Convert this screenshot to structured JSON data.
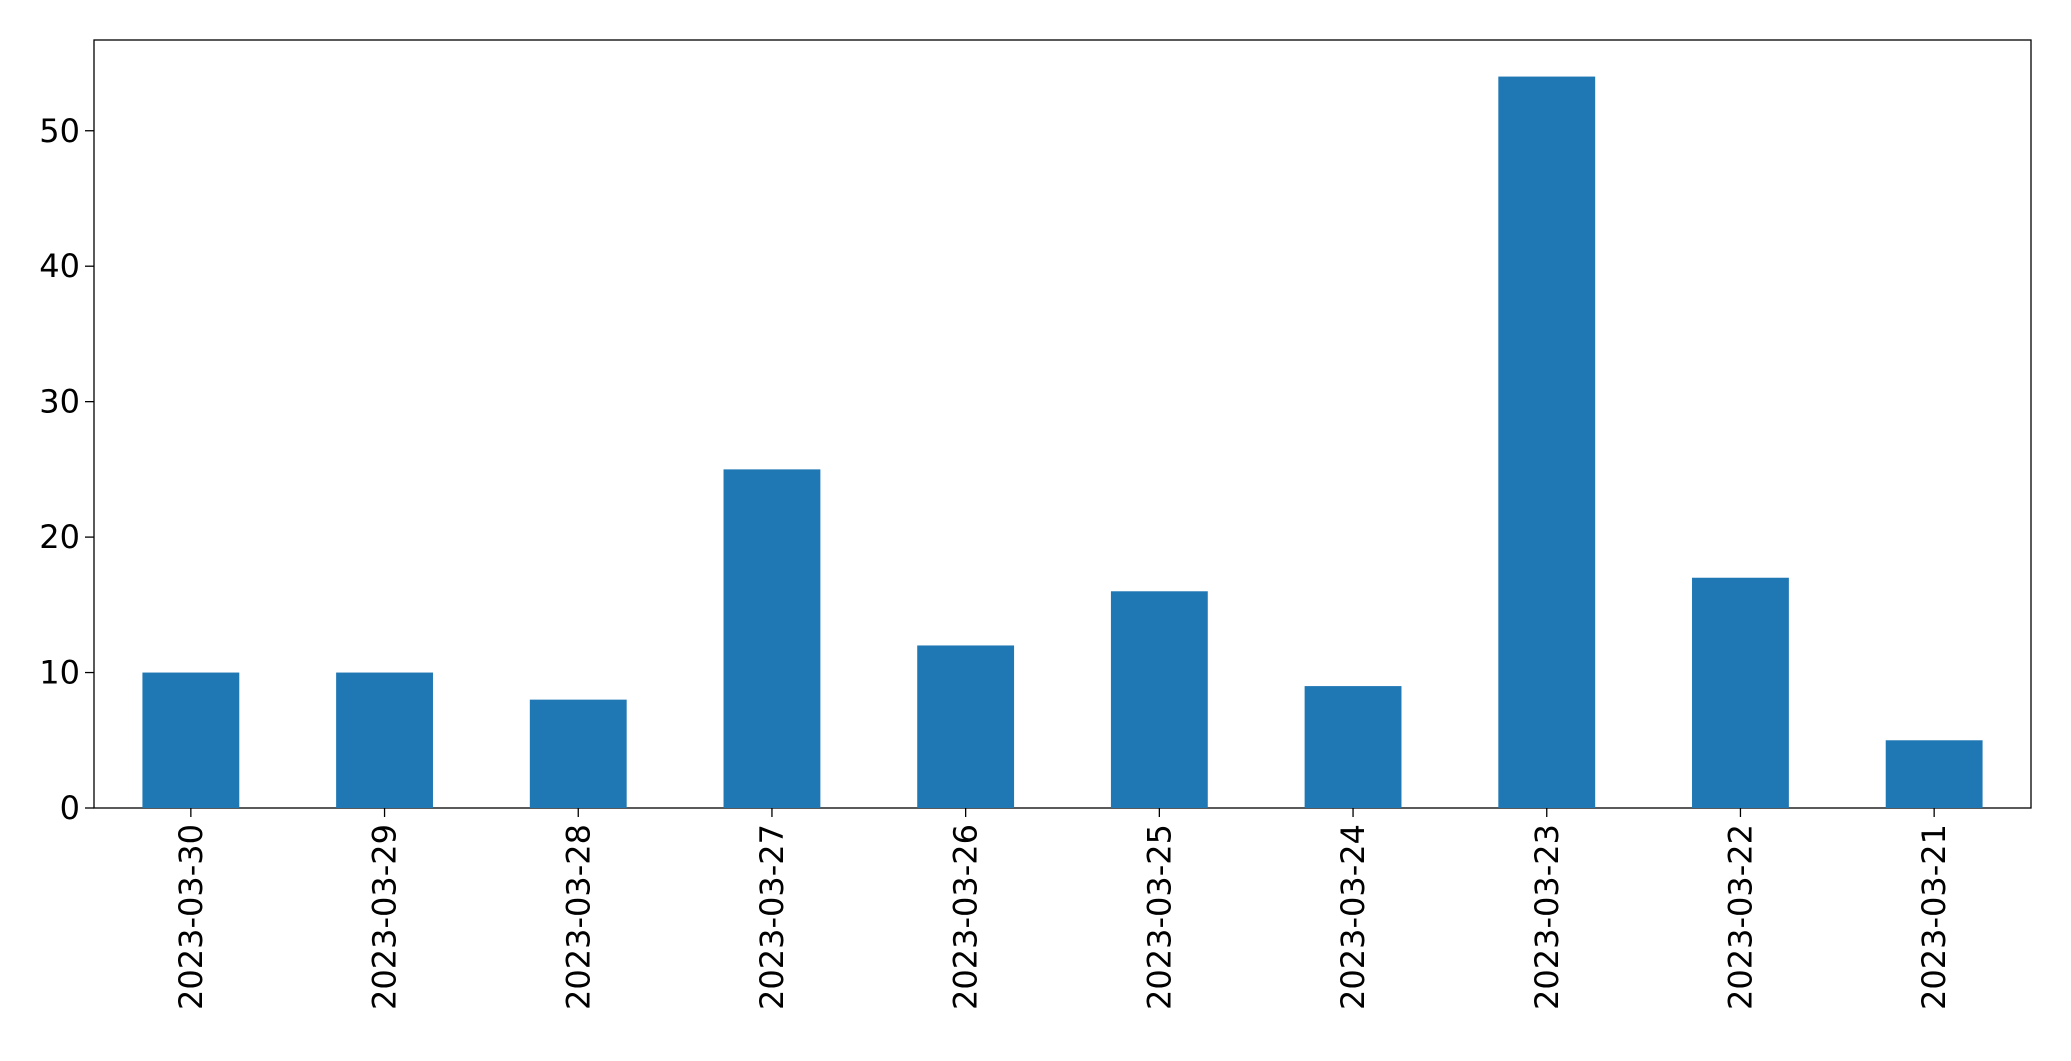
{
  "chart_data": {
    "type": "bar",
    "categories": [
      "2023-03-30",
      "2023-03-29",
      "2023-03-28",
      "2023-03-27",
      "2023-03-26",
      "2023-03-25",
      "2023-03-24",
      "2023-03-23",
      "2023-03-22",
      "2023-03-21"
    ],
    "values": [
      10,
      10,
      8,
      25,
      12,
      16,
      9,
      54,
      17,
      5
    ],
    "color": "#1f77b4",
    "ylim": [
      0,
      56.7
    ],
    "yticks": [
      0,
      10,
      20,
      30,
      40,
      50
    ],
    "grid": false
  }
}
